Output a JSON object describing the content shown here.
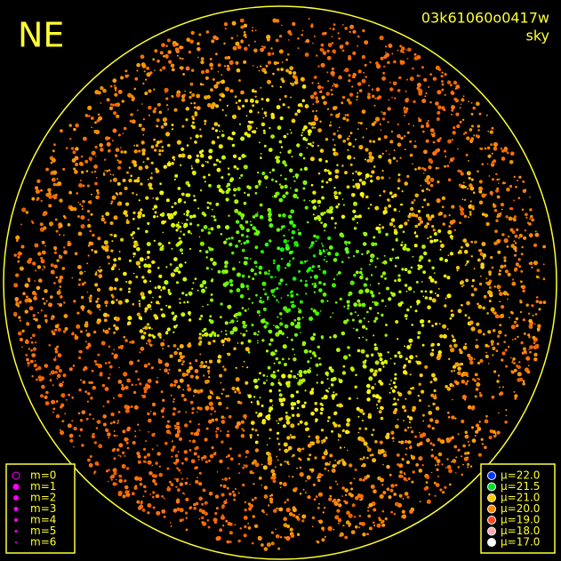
{
  "header": {
    "direction": "NE",
    "frame": "03k61060o0417w",
    "mode": "sky"
  },
  "magnitude_legend": [
    "m=0",
    "m=1",
    "m=2",
    "m=3",
    "m=4",
    "m=5",
    "m=6"
  ],
  "brightness_legend": [
    "μ=22.0",
    "μ=21.5",
    "μ=21.0",
    "μ=20.0",
    "μ=19.0",
    "μ=18.0",
    "μ=17.0"
  ]
}
